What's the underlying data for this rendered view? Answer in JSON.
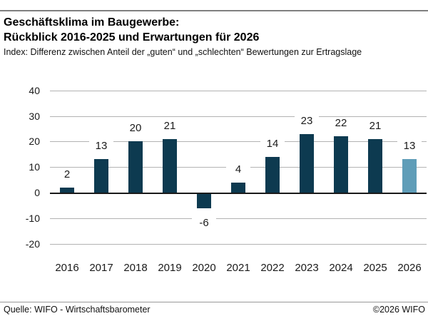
{
  "header": {
    "title_line1": "Geschäftsklima im Baugewerbe:",
    "title_line2": "Rückblick 2016-2025 und Erwartungen für 2026",
    "subtitle": "Index: Differenz zwischen Anteil der „guten“ und „schlechten“ Bewertungen zur Ertragslage"
  },
  "chart_data": {
    "type": "bar",
    "title": "Geschäftsklima im Baugewerbe: Rückblick 2016-2025 und Erwartungen für 2026",
    "categories": [
      "2016",
      "2017",
      "2018",
      "2019",
      "2020",
      "2021",
      "2022",
      "2023",
      "2024",
      "2025",
      "2026"
    ],
    "values": [
      2,
      13,
      20,
      21,
      -6,
      4,
      14,
      23,
      22,
      21,
      13
    ],
    "xlabel": "",
    "ylabel": "",
    "ylim": [
      -20,
      40
    ],
    "yticks": [
      40,
      30,
      20,
      10,
      0,
      -10,
      -20
    ],
    "grid": "horizontal",
    "legend": "none",
    "value_labels": true,
    "colors": {
      "bar_default": "#0d3a50",
      "bar_forecast": "#5f9db8",
      "gridline": "#b3b3b3",
      "zero_axis": "#1a1a1a"
    },
    "forecast_category": "2026"
  },
  "footer": {
    "source": "Quelle: WIFO - Wirtschaftsbarometer",
    "copyright": "©2026 WIFO"
  }
}
